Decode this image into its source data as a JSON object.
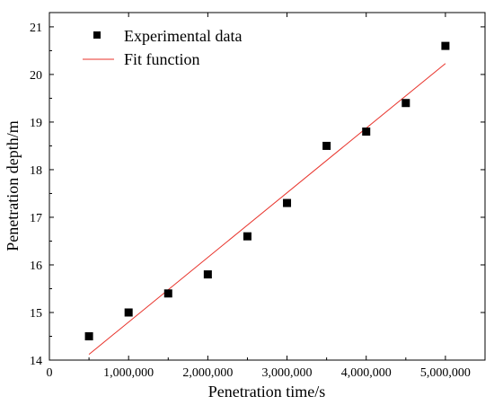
{
  "chart_data": {
    "type": "scatter",
    "xlabel": "Penetration time/s",
    "ylabel": "Penetration depth/m",
    "xlim": [
      0,
      5500000
    ],
    "ylim": [
      14,
      21.3
    ],
    "x_ticks": [
      0,
      1000000,
      2000000,
      3000000,
      4000000,
      5000000
    ],
    "x_tick_labels": [
      "0",
      "1,000,000",
      "2,000,000",
      "3,000,000",
      "4,000,000",
      "5,000,000"
    ],
    "y_ticks": [
      14,
      15,
      16,
      17,
      18,
      19,
      20,
      21
    ],
    "y_tick_labels": [
      "14",
      "15",
      "16",
      "17",
      "18",
      "19",
      "20",
      "21"
    ],
    "grid": false,
    "legend_position": "top-left",
    "series": [
      {
        "name": "Experimental data",
        "kind": "scatter",
        "marker": "square",
        "color": "#000000",
        "x": [
          500000,
          1000000,
          1500000,
          2000000,
          2500000,
          3000000,
          3500000,
          4000000,
          4500000,
          5000000
        ],
        "y": [
          14.5,
          15.0,
          15.4,
          15.8,
          16.6,
          17.3,
          18.5,
          18.8,
          19.4,
          20.6
        ]
      },
      {
        "name": "Fit function",
        "kind": "line",
        "color": "#e8322a",
        "x": [
          500000,
          5000000
        ],
        "y": [
          14.12,
          20.23
        ]
      }
    ]
  }
}
